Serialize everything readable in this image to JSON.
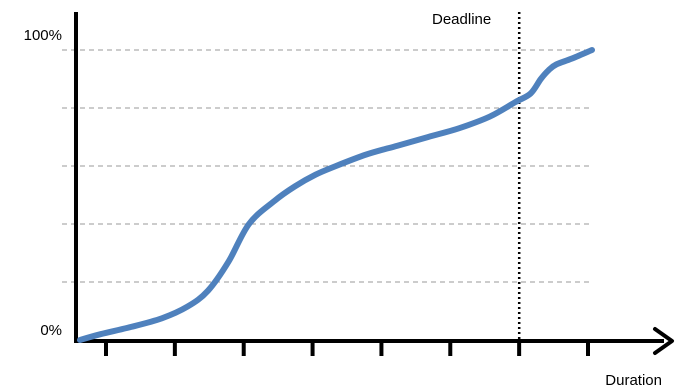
{
  "chart_data": {
    "type": "line",
    "title": "",
    "xlabel": "Duration",
    "ylabel": "",
    "x_ticks": 8,
    "y_tick_labels": {
      "min": "0%",
      "max": "100%"
    },
    "ylim": [
      0,
      100
    ],
    "xlim": [
      0,
      100
    ],
    "grid": {
      "horizontal": true,
      "style": "dashed",
      "levels": [
        20,
        40,
        60,
        80,
        100
      ]
    },
    "colors": {
      "series": "#4f81bd",
      "grid": "#999999",
      "axis": "#000000"
    },
    "series": [
      {
        "x": [
          0,
          4,
          10,
          16,
          21,
          25,
          29,
          33,
          38,
          42,
          46,
          50,
          56,
          62,
          68,
          74,
          80,
          85,
          88,
          90,
          91.5,
          93,
          96,
          100
        ],
        "values": [
          0,
          2,
          4.5,
          7.5,
          11.5,
          17,
          27,
          40,
          48,
          53,
          57,
          60,
          64,
          67,
          70,
          73,
          77,
          82,
          85,
          90,
          93,
          95,
          97,
          100
        ]
      }
    ],
    "annotations": [
      {
        "type": "vline",
        "x": 85,
        "label": "Deadline",
        "style": "dotted"
      }
    ]
  }
}
